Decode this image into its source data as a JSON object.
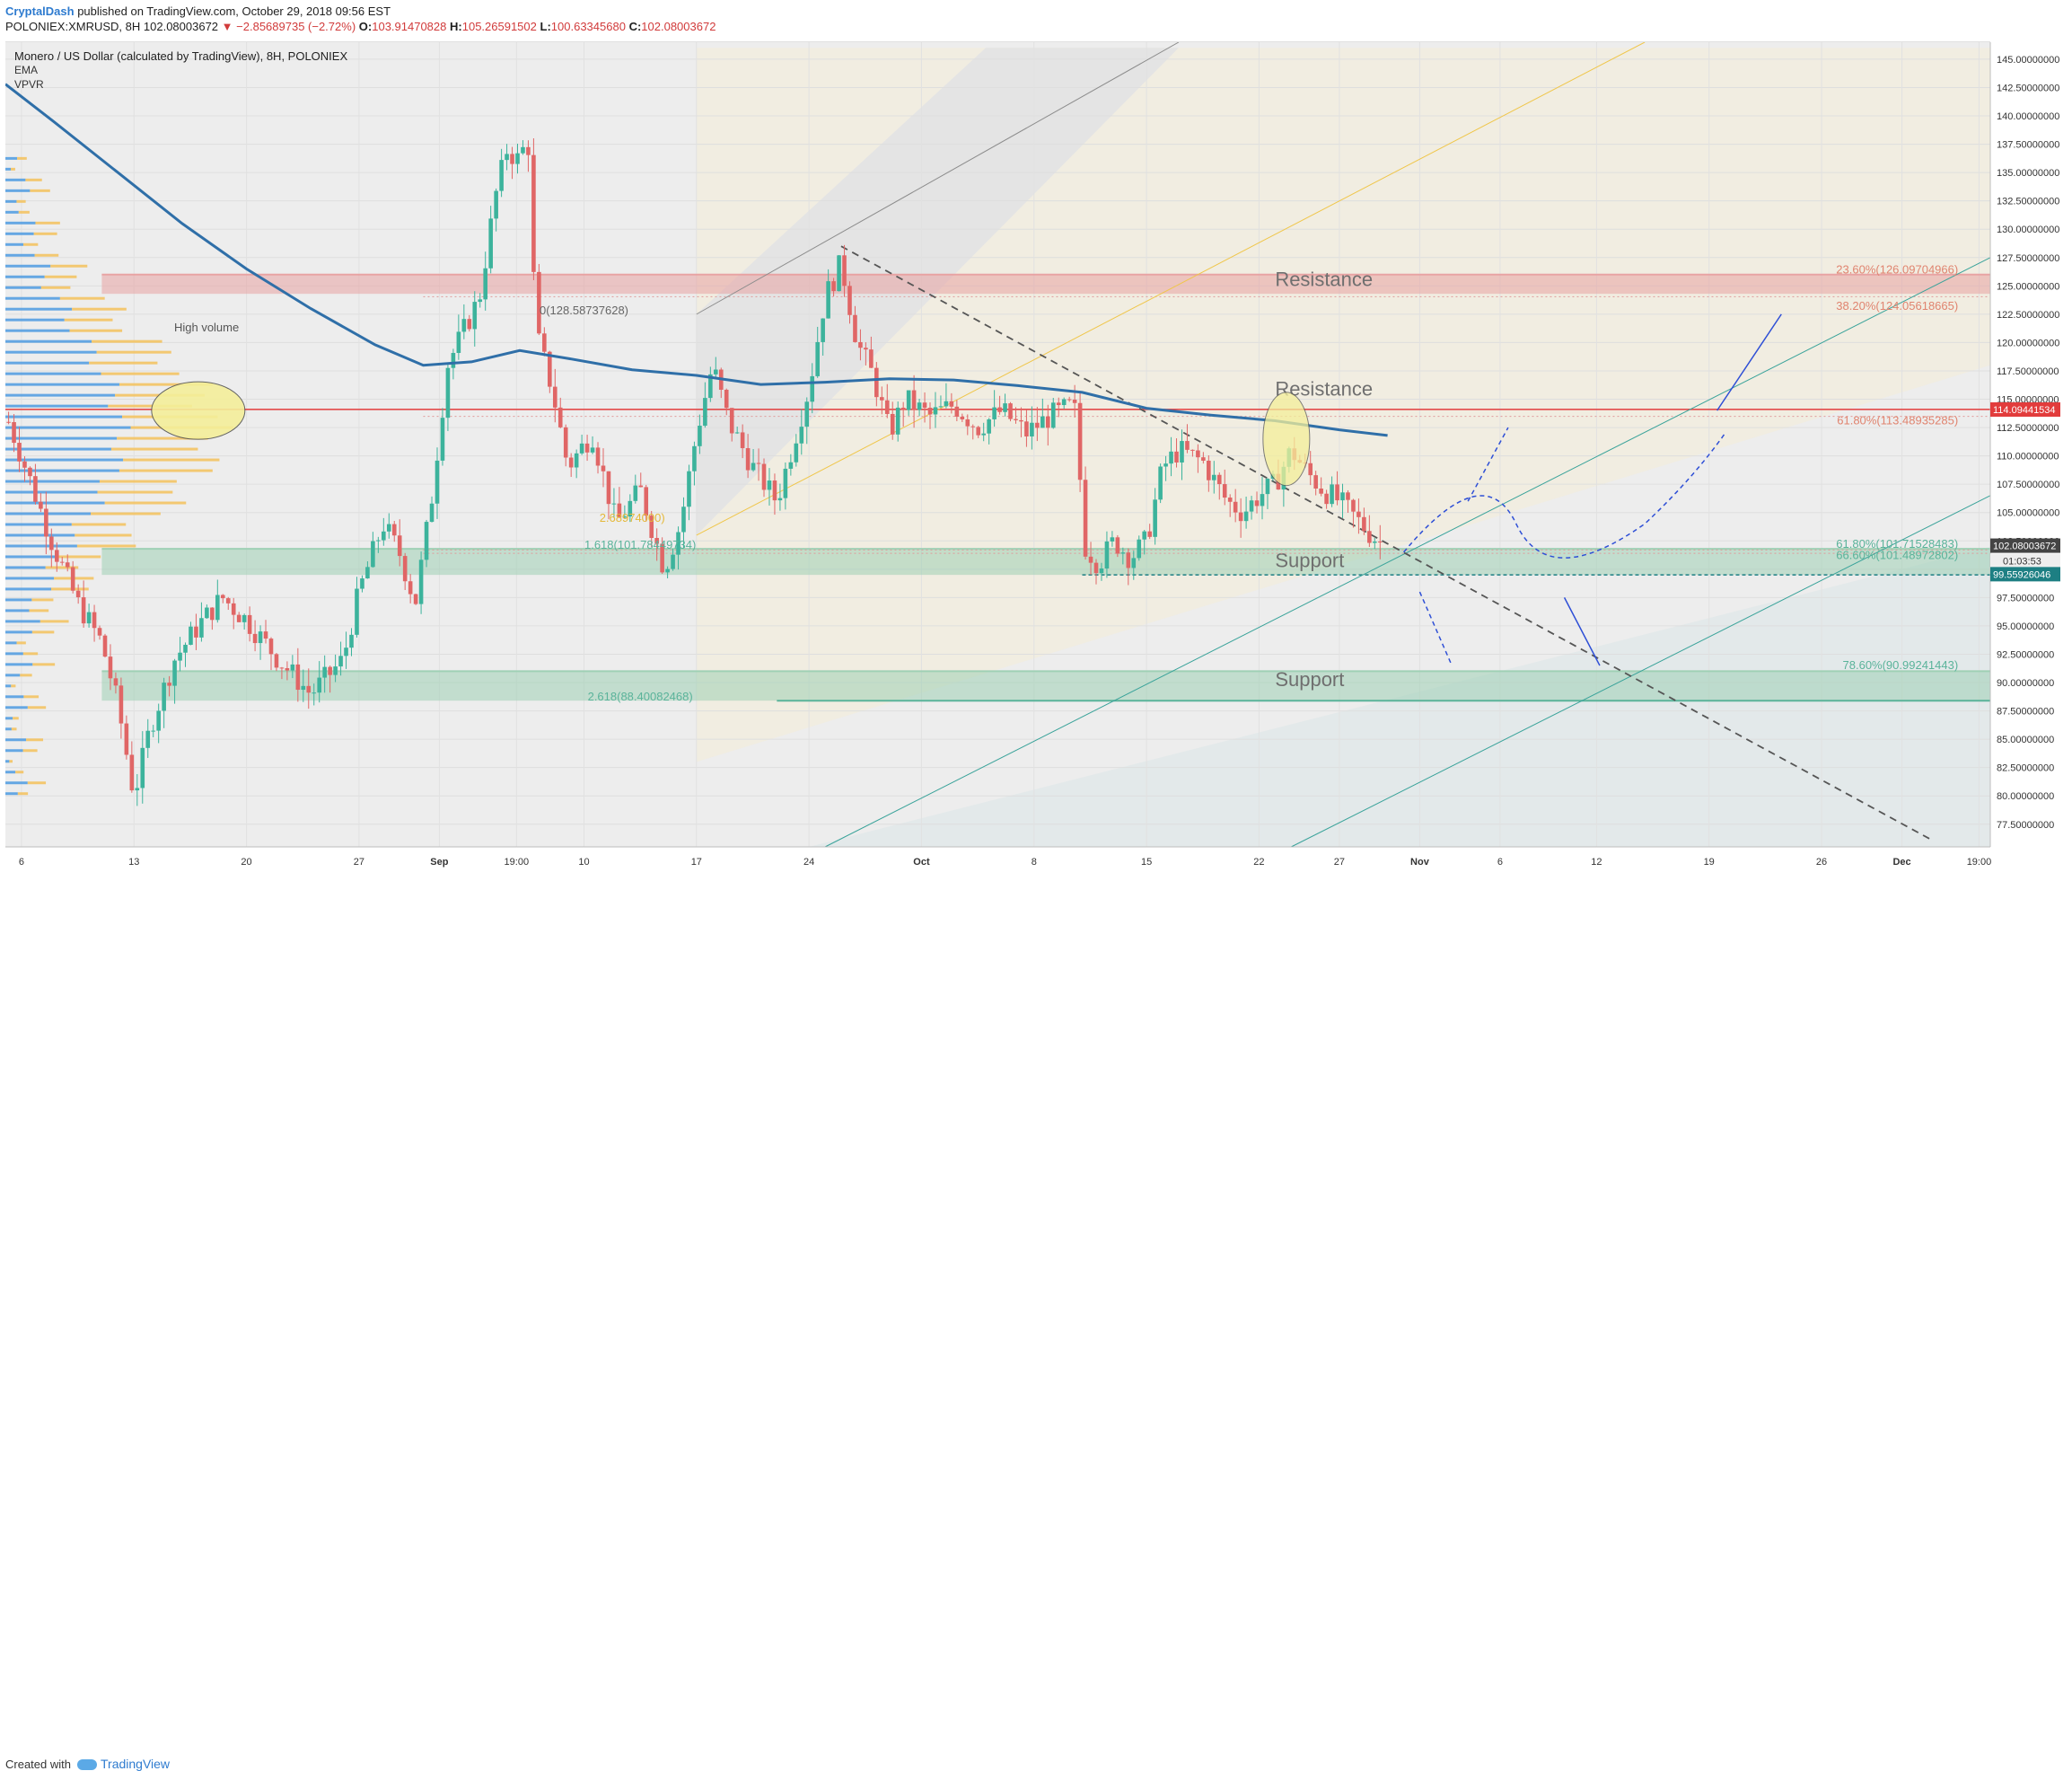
{
  "header": {
    "author": "CryptalDash",
    "published": "published on TradingView.com, October 29, 2018 09:56 EST",
    "symbol": "POLONIEX:XMRUSD, 8H",
    "last": "102.08003672",
    "change": "▼ −2.85689735 (−2.72%)",
    "o_label": "O:",
    "o_val": "103.91470828",
    "h_label": "H:",
    "h_val": "105.26591502",
    "l_label": "L:",
    "l_val": "100.63345680",
    "c_label": "C:",
    "c_val": "102.08003672"
  },
  "legend": {
    "title": "Monero / US Dollar (calculated by TradingView), 8H, POLONIEX",
    "ind1": "EMA",
    "ind2": "VPVR"
  },
  "footer": {
    "created": "Created with",
    "brand": "TradingView"
  },
  "colors": {
    "up": "#3cb39c",
    "down": "#e06666",
    "ema": "#2f6fa8",
    "resistance": "#e8a3a3",
    "support": "#9fd0b5",
    "price_tag": "#e23c3c",
    "alt_tag": "#1d7f83"
  },
  "chart_data": {
    "type": "candlestick",
    "ylim": [
      75.5,
      146.5
    ],
    "price_axis": [
      "145.00000000",
      "142.50000000",
      "140.00000000",
      "137.50000000",
      "135.00000000",
      "132.50000000",
      "130.00000000",
      "127.50000000",
      "125.00000000",
      "122.50000000",
      "120.00000000",
      "117.50000000",
      "115.00000000",
      "112.50000000",
      "110.00000000",
      "107.50000000",
      "105.00000000",
      "102.50000000",
      "100.00000000",
      "97.50000000",
      "95.00000000",
      "92.50000000",
      "90.00000000",
      "87.50000000",
      "85.00000000",
      "82.50000000",
      "80.00000000",
      "77.50000000"
    ],
    "price_ticks": [
      145,
      142.5,
      140,
      137.5,
      135,
      132.5,
      130,
      127.5,
      125,
      122.5,
      120,
      117.5,
      115,
      112.5,
      110,
      107.5,
      105,
      102.5,
      100,
      97.5,
      95,
      92.5,
      90,
      87.5,
      85,
      82.5,
      80,
      77.5
    ],
    "time_axis": [
      {
        "label": "6",
        "day": 6
      },
      {
        "label": "13",
        "day": 13
      },
      {
        "label": "20",
        "day": 20
      },
      {
        "label": "27",
        "day": 27
      },
      {
        "label": "Sep",
        "day": 32
      },
      {
        "label": "19:00",
        "day": 36.8
      },
      {
        "label": "10",
        "day": 41
      },
      {
        "label": "17",
        "day": 48
      },
      {
        "label": "24",
        "day": 55
      },
      {
        "label": "Oct",
        "day": 62
      },
      {
        "label": "8",
        "day": 69
      },
      {
        "label": "15",
        "day": 76
      },
      {
        "label": "22",
        "day": 83
      },
      {
        "label": "27",
        "day": 88
      },
      {
        "label": "Nov",
        "day": 93
      },
      {
        "label": "6",
        "day": 98
      },
      {
        "label": "12",
        "day": 104
      },
      {
        "label": "19",
        "day": 111
      },
      {
        "label": "26",
        "day": 118
      },
      {
        "label": "Dec",
        "day": 123
      },
      {
        "label": "19:00",
        "day": 127.8
      }
    ],
    "xlim_days": [
      5,
      128.5
    ],
    "last_price": "102.08003672",
    "last_price_value": 102.08,
    "countdown": "01:03:53",
    "second_price": "99.55926046",
    "second_price_value": 99.56,
    "red_line_price": "114.09441534",
    "red_line_value": 114.09,
    "path_anchors": [
      {
        "day": 5.2,
        "price": 113.0
      },
      {
        "day": 6.5,
        "price": 108.0
      },
      {
        "day": 8,
        "price": 102.0
      },
      {
        "day": 9.5,
        "price": 97.0
      },
      {
        "day": 11,
        "price": 93.5
      },
      {
        "day": 12,
        "price": 88.0
      },
      {
        "day": 13,
        "price": 80.0
      },
      {
        "day": 14,
        "price": 86.0
      },
      {
        "day": 15.5,
        "price": 92.0
      },
      {
        "day": 17,
        "price": 95.0
      },
      {
        "day": 18.5,
        "price": 97.5
      },
      {
        "day": 20,
        "price": 95.5
      },
      {
        "day": 22,
        "price": 92.0
      },
      {
        "day": 24,
        "price": 89.0
      },
      {
        "day": 26,
        "price": 92.0
      },
      {
        "day": 27,
        "price": 98.0
      },
      {
        "day": 28.5,
        "price": 104.0
      },
      {
        "day": 29.5,
        "price": 101.5
      },
      {
        "day": 30.5,
        "price": 97.0
      },
      {
        "day": 31.5,
        "price": 106.0
      },
      {
        "day": 32.5,
        "price": 118.0
      },
      {
        "day": 33.5,
        "price": 121.0
      },
      {
        "day": 34.5,
        "price": 124.0
      },
      {
        "day": 35.5,
        "price": 133.0
      },
      {
        "day": 36.2,
        "price": 137.0
      },
      {
        "day": 37,
        "price": 136.0
      },
      {
        "day": 37.5,
        "price": 138.5
      },
      {
        "day": 38,
        "price": 121.0
      },
      {
        "day": 39,
        "price": 116.0
      },
      {
        "day": 40,
        "price": 109.0
      },
      {
        "day": 41.5,
        "price": 112.0
      },
      {
        "day": 43,
        "price": 104.0
      },
      {
        "day": 44.5,
        "price": 107.0
      },
      {
        "day": 46,
        "price": 100.0
      },
      {
        "day": 47,
        "price": 104.0
      },
      {
        "day": 48,
        "price": 112.0
      },
      {
        "day": 49,
        "price": 118.0
      },
      {
        "day": 50,
        "price": 113.0
      },
      {
        "day": 51.5,
        "price": 109.0
      },
      {
        "day": 53,
        "price": 106.0
      },
      {
        "day": 54,
        "price": 111.0
      },
      {
        "day": 55,
        "price": 116.0
      },
      {
        "day": 56,
        "price": 124.0
      },
      {
        "day": 57,
        "price": 127.0
      },
      {
        "day": 58,
        "price": 120.0
      },
      {
        "day": 59,
        "price": 117.0
      },
      {
        "day": 60,
        "price": 112.0
      },
      {
        "day": 61,
        "price": 115.0
      },
      {
        "day": 62.5,
        "price": 113.5
      },
      {
        "day": 64,
        "price": 114.5
      },
      {
        "day": 65.5,
        "price": 112.5
      },
      {
        "day": 67,
        "price": 114.0
      },
      {
        "day": 68.5,
        "price": 112.0
      },
      {
        "day": 70,
        "price": 113.5
      },
      {
        "day": 71.5,
        "price": 114.5
      },
      {
        "day": 72.2,
        "price": 102.0
      },
      {
        "day": 73,
        "price": 100.5
      },
      {
        "day": 74,
        "price": 102.5
      },
      {
        "day": 75,
        "price": 101.0
      },
      {
        "day": 76,
        "price": 102.5
      },
      {
        "day": 77,
        "price": 109.0
      },
      {
        "day": 78,
        "price": 110.5
      },
      {
        "day": 79.5,
        "price": 109.5
      },
      {
        "day": 81,
        "price": 106.0
      },
      {
        "day": 82,
        "price": 105.0
      },
      {
        "day": 83,
        "price": 106.5
      },
      {
        "day": 84,
        "price": 107.5
      },
      {
        "day": 85,
        "price": 110.5
      },
      {
        "day": 86,
        "price": 108.5
      },
      {
        "day": 87,
        "price": 107.0
      },
      {
        "day": 88,
        "price": 106.0
      },
      {
        "day": 89,
        "price": 104.5
      },
      {
        "day": 90,
        "price": 103.0
      },
      {
        "day": 90.8,
        "price": 102.08
      }
    ],
    "ema_points": [
      {
        "day": 5,
        "price": 142.8
      },
      {
        "day": 8,
        "price": 139.5
      },
      {
        "day": 12,
        "price": 135.0
      },
      {
        "day": 16,
        "price": 130.5
      },
      {
        "day": 20,
        "price": 126.5
      },
      {
        "day": 24,
        "price": 123.0
      },
      {
        "day": 28,
        "price": 119.8
      },
      {
        "day": 31,
        "price": 118.0
      },
      {
        "day": 34,
        "price": 118.3
      },
      {
        "day": 37,
        "price": 119.3
      },
      {
        "day": 40,
        "price": 118.6
      },
      {
        "day": 44,
        "price": 117.6
      },
      {
        "day": 48,
        "price": 117.1
      },
      {
        "day": 52,
        "price": 116.3
      },
      {
        "day": 56,
        "price": 116.5
      },
      {
        "day": 60,
        "price": 116.8
      },
      {
        "day": 64,
        "price": 116.7
      },
      {
        "day": 68,
        "price": 116.2
      },
      {
        "day": 72,
        "price": 115.6
      },
      {
        "day": 76,
        "price": 114.2
      },
      {
        "day": 80,
        "price": 113.6
      },
      {
        "day": 84,
        "price": 113.1
      },
      {
        "day": 88,
        "price": 112.3
      },
      {
        "day": 91,
        "price": 111.8
      }
    ],
    "zones": [
      {
        "label": "Resistance",
        "top": 126.0,
        "bottom": 124.3,
        "color": "#e8a3a3",
        "label_day": 84,
        "label_price": 125.0
      },
      {
        "label": "Resistance",
        "top": 114.1,
        "bottom": 114.1,
        "color": "#e23c3c",
        "label_day": 84,
        "label_price": 115.3
      },
      {
        "label": "Support",
        "top": 101.8,
        "bottom": 99.5,
        "color": "#9fd0b5",
        "label_day": 84,
        "label_price": 100.2
      },
      {
        "label": "Support",
        "top": 91.0,
        "bottom": 88.4,
        "color": "#9fd0b5",
        "label_day": 84,
        "label_price": 89.7
      }
    ],
    "fib_labels": [
      {
        "text": "23.60%(126.09704966)",
        "price": 126.1,
        "color": "#e0846f"
      },
      {
        "text": "38.20%(124.05618665)",
        "price": 122.9,
        "color": "#e0846f"
      },
      {
        "text": "61.80%(113.48935285)",
        "price": 112.8,
        "color": "#e0846f"
      },
      {
        "text": "61.80%(101.71528483)",
        "price": 101.9,
        "color": "#5ab39a"
      },
      {
        "text": "66.60%(101.48972802)",
        "price": 100.9,
        "color": "#5ab39a"
      },
      {
        "text": "78.60%(90.99241443)",
        "price": 91.2,
        "color": "#5ab39a"
      }
    ],
    "ext_labels": [
      {
        "text": "0(128.58737628)",
        "day": 41,
        "price": 122.5,
        "color": "#666"
      },
      {
        "text": "1.618(101.78449734)",
        "day": 44.5,
        "price": 101.8,
        "color": "#5ab39a"
      },
      {
        "text": "2.618(88.40082468)",
        "day": 44.5,
        "price": 88.4,
        "color": "#5ab39a"
      },
      {
        "text": "2.68974000)",
        "day": 44,
        "price": 104.2,
        "color": "#e5b93a"
      }
    ],
    "annotation": {
      "text": "High volume"
    }
  }
}
